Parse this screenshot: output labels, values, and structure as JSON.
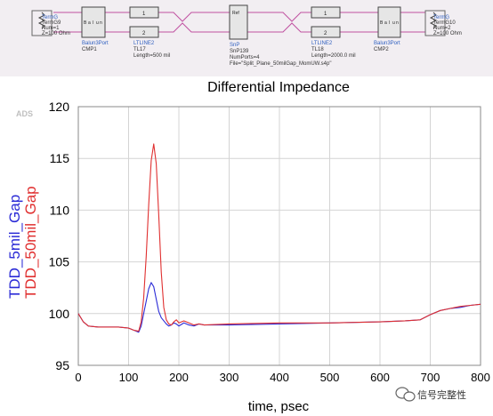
{
  "schematic": {
    "left_term": [
      "TermG",
      "TermG9",
      "Num=1",
      "Z=100 Ohm"
    ],
    "balun_left": [
      "Balun3Port",
      "CMP1"
    ],
    "tline_left": [
      "LTLINE2",
      "TL17",
      "Length=500 mil"
    ],
    "snp": [
      "SnP",
      "SnP139",
      "NumPorts=4",
      "File=\"Split_Plane_50milGap_MomUW.s4p\""
    ],
    "tline_right": [
      "LTLINE2",
      "TL18",
      "Length=2000.0 mil"
    ],
    "balun_right": [
      "Balun3Port",
      "CMP2"
    ],
    "right_term": [
      "TermG",
      "TermG10",
      "Num=2",
      "Z=100 Ohm"
    ],
    "pin1": "1",
    "pin2": "2",
    "balun_chars": [
      "B",
      "a",
      "l",
      "u",
      "n"
    ],
    "snp_ref": "Ref"
  },
  "watermark": "ADS",
  "credit": "信号完整性",
  "colors": {
    "series1": "#2b2bd6",
    "series2": "#e03030",
    "schematic_bg": "#f2eef2",
    "wire": "#c050a0"
  },
  "chart_data": {
    "type": "line",
    "title": "Differential Impedance",
    "xlabel": "time, psec",
    "xlim": [
      0,
      800
    ],
    "ylim": [
      95,
      120
    ],
    "xticks": [
      0,
      100,
      200,
      300,
      400,
      500,
      600,
      700,
      800
    ],
    "yticks": [
      95,
      100,
      105,
      110,
      115,
      120
    ],
    "grid": true,
    "legend": "rotated labels on left",
    "series": [
      {
        "name": "TDD_5mil_Gap",
        "color": "#2b2bd6",
        "x": [
          0,
          10,
          20,
          40,
          60,
          80,
          100,
          110,
          120,
          125,
          130,
          135,
          140,
          145,
          150,
          155,
          160,
          165,
          170,
          175,
          180,
          185,
          190,
          195,
          200,
          210,
          220,
          230,
          240,
          250,
          300,
          400,
          500,
          600,
          650,
          680,
          700,
          720,
          740,
          760,
          780,
          800
        ],
        "y": [
          100.0,
          99.2,
          98.8,
          98.7,
          98.7,
          98.7,
          98.6,
          98.4,
          98.2,
          98.8,
          100.0,
          101.2,
          102.4,
          103.0,
          102.6,
          101.4,
          100.2,
          99.6,
          99.3,
          99.0,
          98.8,
          98.9,
          99.1,
          99.0,
          98.8,
          99.1,
          98.9,
          98.8,
          99.0,
          98.9,
          98.9,
          99.0,
          99.1,
          99.2,
          99.3,
          99.4,
          99.9,
          100.3,
          100.5,
          100.6,
          100.8,
          100.9
        ]
      },
      {
        "name": "TDD_50mil_Gap",
        "color": "#e03030",
        "x": [
          0,
          10,
          20,
          40,
          60,
          80,
          100,
          110,
          120,
          125,
          130,
          135,
          140,
          145,
          150,
          155,
          160,
          165,
          170,
          175,
          180,
          185,
          190,
          195,
          200,
          210,
          220,
          230,
          240,
          250,
          300,
          400,
          500,
          600,
          650,
          680,
          700,
          720,
          740,
          760,
          780,
          800
        ],
        "y": [
          100.0,
          99.2,
          98.8,
          98.7,
          98.7,
          98.7,
          98.6,
          98.4,
          98.3,
          99.2,
          101.5,
          105.5,
          110.5,
          114.8,
          116.4,
          114.5,
          109.5,
          104.0,
          100.6,
          99.4,
          99.0,
          98.9,
          99.2,
          99.4,
          99.1,
          99.3,
          99.1,
          98.9,
          99.0,
          98.9,
          99.0,
          99.1,
          99.1,
          99.2,
          99.3,
          99.4,
          99.9,
          100.3,
          100.5,
          100.7,
          100.8,
          100.9
        ]
      }
    ]
  }
}
